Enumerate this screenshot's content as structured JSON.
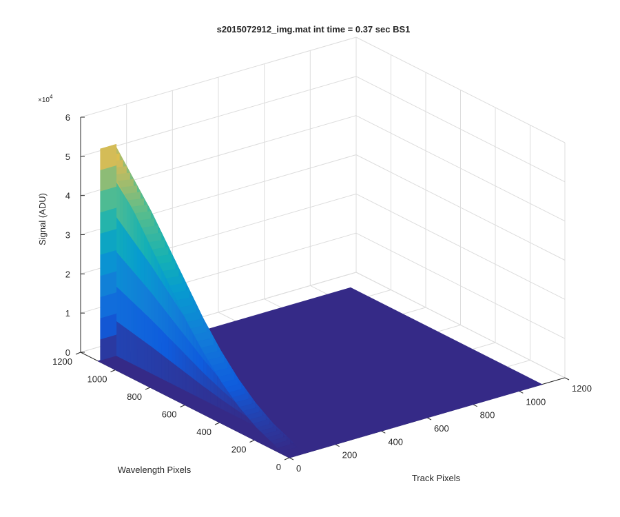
{
  "figure": {
    "title": "s2015072912_img.mat int time = 0.37 sec   BS1"
  },
  "chart_data": {
    "type": "surface3d",
    "title": "s2015072912_img.mat int time = 0.37 sec   BS1",
    "xlabel": "Track Pixels",
    "ylabel": "Wavelength Pixels",
    "zlabel": "Signal (ADU)",
    "xlim": [
      0,
      1200
    ],
    "ylim": [
      0,
      1200
    ],
    "zlim": [
      0,
      60000
    ],
    "xticks": [
      0,
      200,
      400,
      600,
      800,
      1000,
      1200
    ],
    "yticks": [
      0,
      200,
      400,
      600,
      800,
      1000,
      1200
    ],
    "zticks": [
      0,
      10000,
      20000,
      30000,
      40000,
      50000,
      60000
    ],
    "zticklabels": [
      "0",
      "1",
      "2",
      "3",
      "4",
      "5",
      "6"
    ],
    "z_exponent_label": "× 10^4",
    "grid": true,
    "colormap": "parula",
    "data_extent": {
      "x": [
        0,
        1100
      ],
      "y": [
        0,
        1100
      ]
    },
    "peak": {
      "track_range": [
        10,
        80
      ],
      "wavelength_start": 1100,
      "wavelength_end": 60,
      "signal_profile_wavelength": [
        1100,
        1000,
        900,
        800,
        700,
        600,
        500,
        400,
        300,
        200,
        100,
        60
      ],
      "signal_profile_values": [
        54000,
        48000,
        42000,
        35000,
        28000,
        21000,
        15000,
        10000,
        6000,
        3000,
        1000,
        0
      ]
    },
    "colors": {
      "floor": "#352a87",
      "low": "#0f5cdd",
      "mid": "#15b1b4",
      "high": "#d1bb59",
      "top": "#f9fb0e"
    }
  }
}
